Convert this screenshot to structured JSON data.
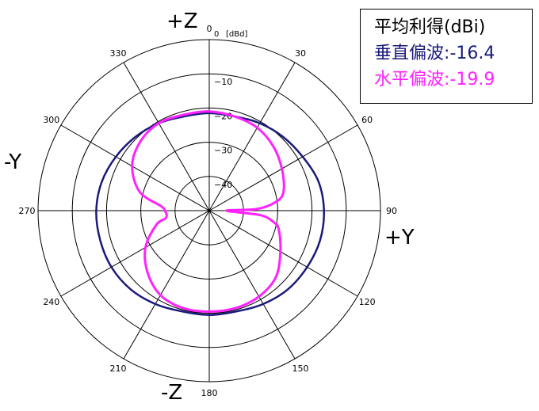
{
  "chart_data": {
    "type": "polar-line",
    "unit": "[dBd]",
    "r_range": [
      -50,
      0
    ],
    "r_ticks": [
      0,
      -10,
      -20,
      -30,
      -40
    ],
    "angle_ticks": [
      0,
      30,
      60,
      90,
      120,
      150,
      180,
      210,
      240,
      270,
      300,
      330
    ],
    "direction_labels": {
      "top": "+Z",
      "right": "+Y",
      "bottom": "-Z",
      "left": "-Y"
    },
    "legend": {
      "title": "平均利得(dBi)",
      "items": [
        {
          "name": "垂直偏波",
          "value": "-16.4",
          "color": "#1a1a7a"
        },
        {
          "name": "水平偏波",
          "value": "-19.9",
          "color": "#ff22ff"
        }
      ]
    },
    "series": [
      {
        "name": "垂直偏波",
        "color": "#1a1a7a",
        "angles": [
          0,
          15,
          30,
          45,
          60,
          75,
          90,
          105,
          120,
          135,
          150,
          165,
          180,
          195,
          210,
          225,
          240,
          255,
          270,
          285,
          300,
          315,
          330,
          345
        ],
        "values": [
          -21.5,
          -21.5,
          -20.5,
          -19.5,
          -18.5,
          -17,
          -16.5,
          -16.5,
          -17,
          -17.5,
          -18.5,
          -19.5,
          -19.5,
          -19.5,
          -18.5,
          -17.5,
          -17,
          -17,
          -17,
          -17.5,
          -18.5,
          -19.5,
          -20.5,
          -21.5
        ]
      },
      {
        "name": "水平偏波",
        "color": "#ff22ff",
        "angles": [
          0,
          15,
          30,
          45,
          60,
          75,
          82,
          88,
          90,
          95,
          100,
          105,
          120,
          135,
          150,
          165,
          180,
          195,
          210,
          225,
          240,
          255,
          260,
          265,
          270,
          275,
          285,
          300,
          315,
          330,
          345
        ],
        "values": [
          -21,
          -21.5,
          -22,
          -23.5,
          -25.5,
          -27.5,
          -30,
          -36,
          -45,
          -35,
          -31,
          -29,
          -26,
          -22.5,
          -21,
          -20.5,
          -20.5,
          -20.5,
          -21.5,
          -24.5,
          -28.5,
          -34,
          -37,
          -37.5,
          -37,
          -36,
          -29,
          -24,
          -21.5,
          -20.5,
          -21
        ]
      }
    ]
  }
}
